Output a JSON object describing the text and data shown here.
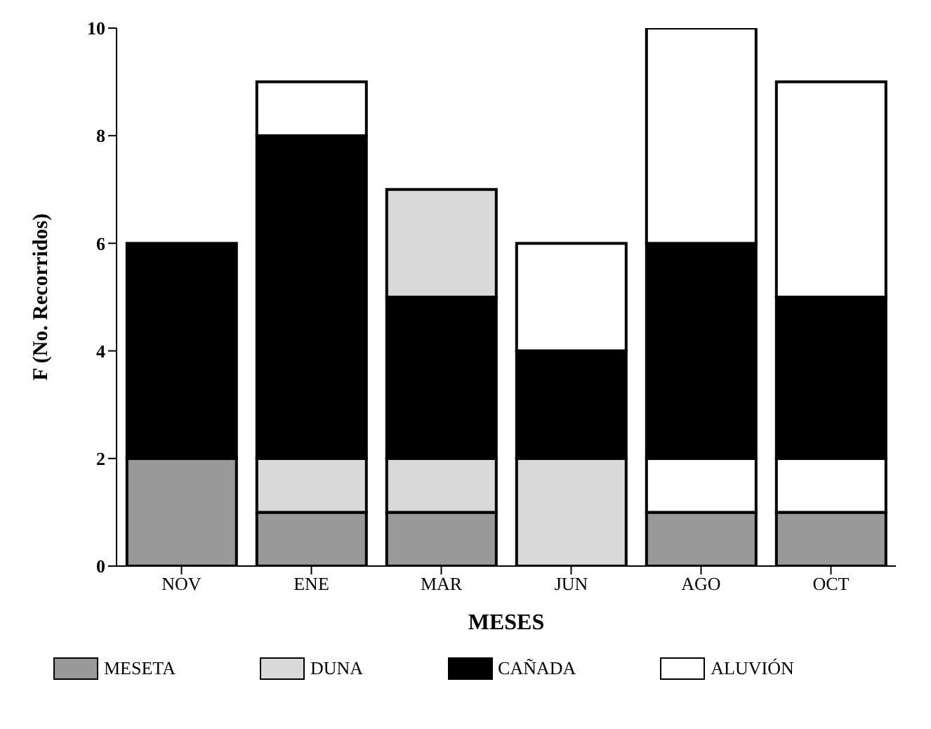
{
  "chart_data": {
    "type": "bar",
    "stacked": true,
    "xlabel": "MESES",
    "ylabel": "F (No. Recorridos)",
    "categories": [
      "NOV",
      "ENE",
      "MAR",
      "JUN",
      "AGO",
      "OCT"
    ],
    "series": [
      {
        "name": "MESETA",
        "color": "#999999",
        "values": [
          2,
          1,
          1,
          0,
          1,
          1
        ]
      },
      {
        "name": "DUNA",
        "color": "#d9d9d9",
        "values": [
          0,
          1,
          1,
          2,
          0,
          0
        ]
      },
      {
        "color": "#ffffff",
        "values": [
          0,
          0,
          0,
          0,
          1,
          1
        ]
      },
      {
        "name": "CAÑADA",
        "color": "#000000",
        "values": [
          4,
          6,
          3,
          2,
          4,
          3
        ]
      },
      {
        "color": "#d9d9d9",
        "values": [
          0,
          0,
          2,
          0,
          0,
          0
        ]
      },
      {
        "name": "ALUVIÓN",
        "color": "#ffffff",
        "values": [
          0,
          1,
          0,
          2,
          4,
          4
        ]
      }
    ],
    "ylim": [
      0,
      10
    ],
    "yticks": [
      0,
      2,
      4,
      6,
      8,
      10
    ],
    "grid": false,
    "legend": "bottom"
  }
}
